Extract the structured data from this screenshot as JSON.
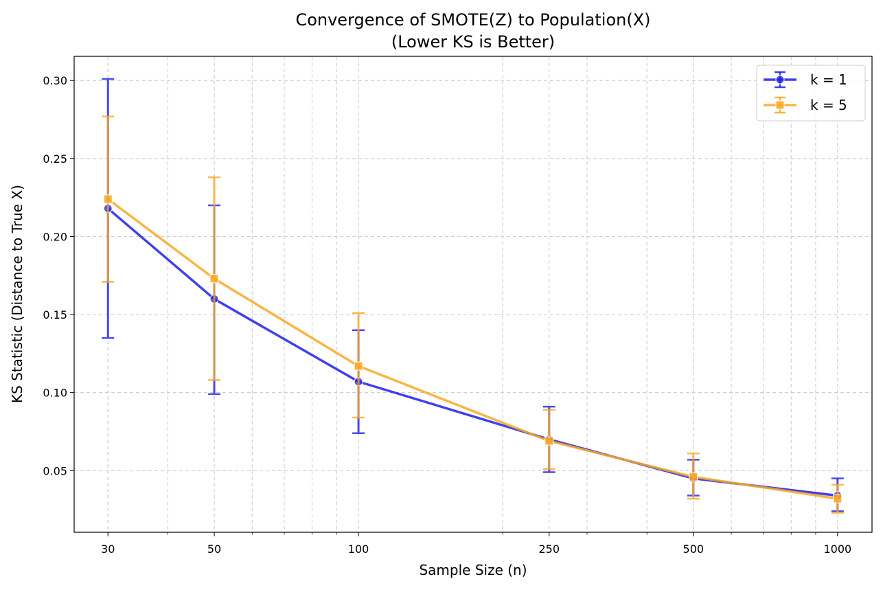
{
  "chart_data": {
    "type": "line",
    "title": "Convergence of SMOTE(Z) to Population(X)",
    "subtitle": "(Lower KS is Better)",
    "xlabel": "Sample Size (n)",
    "ylabel": "KS Statistic (Distance to True X)",
    "x_scale": "log",
    "xlim": [
      25.5,
      1180
    ],
    "ylim": [
      0.0105,
      0.3155
    ],
    "x": [
      30,
      50,
      100,
      250,
      500,
      1000
    ],
    "x_tick_labels": [
      "30",
      "50",
      "100",
      "250",
      "500",
      "1000"
    ],
    "y_ticks": [
      0.05,
      0.1,
      0.15,
      0.2,
      0.25,
      0.3
    ],
    "y_tick_labels": [
      "0.05",
      "0.10",
      "0.15",
      "0.20",
      "0.25",
      "0.30"
    ],
    "grid": true,
    "legend_position": "top-right",
    "series": [
      {
        "name": "k = 1",
        "color": "#1f1fe8",
        "marker": "circle",
        "values": [
          0.218,
          0.16,
          0.107,
          0.07,
          0.045,
          0.034
        ],
        "err_low": [
          0.135,
          0.099,
          0.074,
          0.049,
          0.034,
          0.024
        ],
        "err_high": [
          0.301,
          0.22,
          0.14,
          0.091,
          0.057,
          0.045
        ]
      },
      {
        "name": "k = 5",
        "color": "#f9a823",
        "marker": "square",
        "values": [
          0.224,
          0.173,
          0.117,
          0.069,
          0.046,
          0.032
        ],
        "err_low": [
          0.171,
          0.108,
          0.084,
          0.051,
          0.032,
          0.023
        ],
        "err_high": [
          0.277,
          0.238,
          0.151,
          0.089,
          0.061,
          0.041
        ]
      }
    ]
  }
}
